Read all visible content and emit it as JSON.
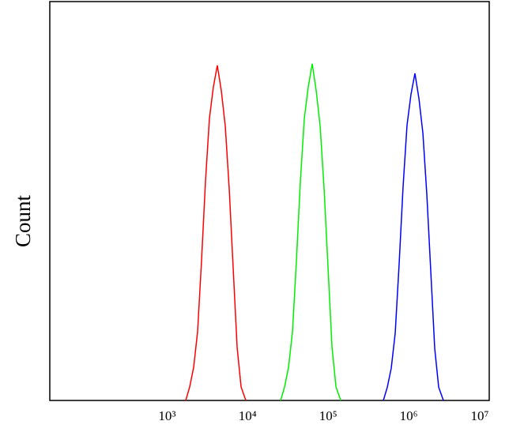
{
  "chart_data": {
    "type": "line",
    "y_label": "Count",
    "xscale": "log",
    "xlim": [
      35,
      10000000
    ],
    "ylim": [
      0,
      100
    ],
    "xticks": [
      {
        "value": 1000,
        "label": "10³"
      },
      {
        "value": 10000,
        "label": "10⁴"
      },
      {
        "value": 100000,
        "label": "10⁵"
      },
      {
        "value": 1000000,
        "label": "10⁶"
      },
      {
        "value": 10000000,
        "label": "10⁷"
      }
    ],
    "series": [
      {
        "color": "#ff0000",
        "x": [
          1706,
          1910,
          2138,
          2393,
          2679,
          2999,
          3357,
          3758,
          4207,
          4720,
          5284,
          5916,
          6622,
          7413,
          8299,
          9506
        ],
        "values": [
          0,
          3.4,
          8.3,
          17.2,
          35,
          54.9,
          70.7,
          78.6,
          84,
          77.6,
          68.7,
          52.9,
          33.1,
          13.3,
          3.4,
          0
        ]
      },
      {
        "color": "#00ee00",
        "x": [
          25710,
          28780,
          32220,
          36060,
          40370,
          45190,
          50590,
          56630,
          63400,
          71130,
          79630,
          89150,
          99790,
          111700,
          125100,
          143300
        ],
        "values": [
          0,
          3.4,
          8.3,
          17.2,
          35,
          54.9,
          70.7,
          78.6,
          84.4,
          77.6,
          68.7,
          52.9,
          33.1,
          13.3,
          3.4,
          0
        ]
      },
      {
        "color": "#0000ff",
        "x": [
          484500,
          542400,
          607200,
          679600,
          760800,
          851700,
          953400,
          1067000,
          1195000,
          1340000,
          1501000,
          1680000,
          1881000,
          2105000,
          2357000,
          2700000
        ],
        "values": [
          0,
          3.3,
          8.1,
          16.8,
          34.2,
          53.6,
          69,
          76.7,
          82,
          75.7,
          67,
          51.6,
          32.3,
          13,
          3.3,
          0
        ]
      }
    ]
  }
}
